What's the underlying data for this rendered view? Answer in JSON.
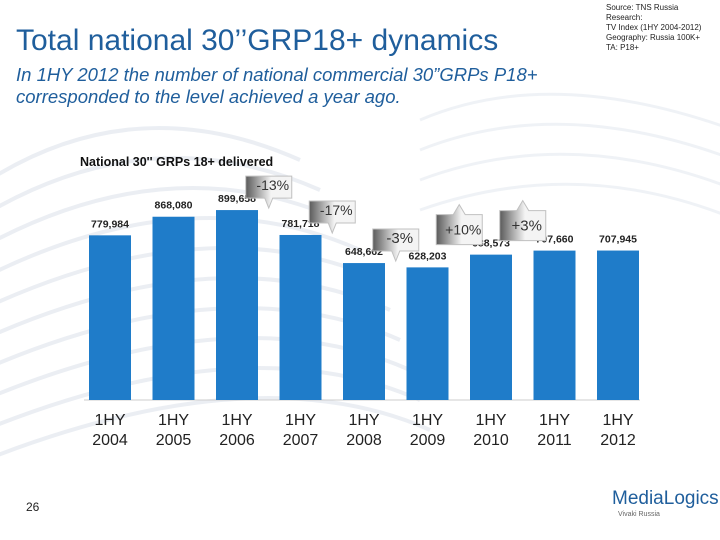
{
  "slide": {
    "title": "Total national 30’’GRP18+ dynamics",
    "subtitle": "In 1HY 2012 the number of national commercial 30”GRPs P18+ corresponded to the level achieved a year ago.",
    "source_lines": [
      "Source: TNS Russia",
      "Research:",
      "TV Index (1HY 2004-2012)",
      "Geography: Russia 100K+",
      "TA: P18+"
    ],
    "page_number": "26",
    "logo": {
      "main": "MediaLogics",
      "sub": "Vivaki Russia"
    }
  },
  "colors": {
    "bar": "#1f7cc9",
    "title": "#1f5e9c",
    "callout_fill_left": "#5a5a5a",
    "callout_fill_right": "#f4f4f4",
    "callout_accent": "#c0c0c0"
  },
  "chart_data": {
    "type": "bar",
    "title": "National 30'' GRPs 18+ delivered",
    "categories": [
      "1HY\n2004",
      "1HY\n2005",
      "1HY\n2006",
      "1HY\n2007",
      "1HY\n2008",
      "1HY\n2009",
      "1HY\n2010",
      "1HY\n2011",
      "1HY\n2012"
    ],
    "values": [
      779984,
      868080,
      899658,
      781718,
      648662,
      628203,
      688573,
      707660,
      707945
    ],
    "value_labels": [
      "779,984",
      "868,080",
      "899,658",
      "781,718",
      "648,662",
      "628,203",
      "688,573",
      "707,660",
      "707,945"
    ],
    "ylim": [
      0,
      900000
    ],
    "grid": false,
    "legend": "none",
    "annotations": [
      {
        "text": "-13%",
        "from": 2,
        "to": 3,
        "direction": "down"
      },
      {
        "text": "-17%",
        "from": 3,
        "to": 4,
        "direction": "down"
      },
      {
        "text": "-3%",
        "from": 4,
        "to": 5,
        "direction": "down"
      },
      {
        "text": "+10%",
        "from": 5,
        "to": 6,
        "direction": "up"
      },
      {
        "text": "+3%",
        "from": 6,
        "to": 7,
        "direction": "up"
      }
    ]
  }
}
